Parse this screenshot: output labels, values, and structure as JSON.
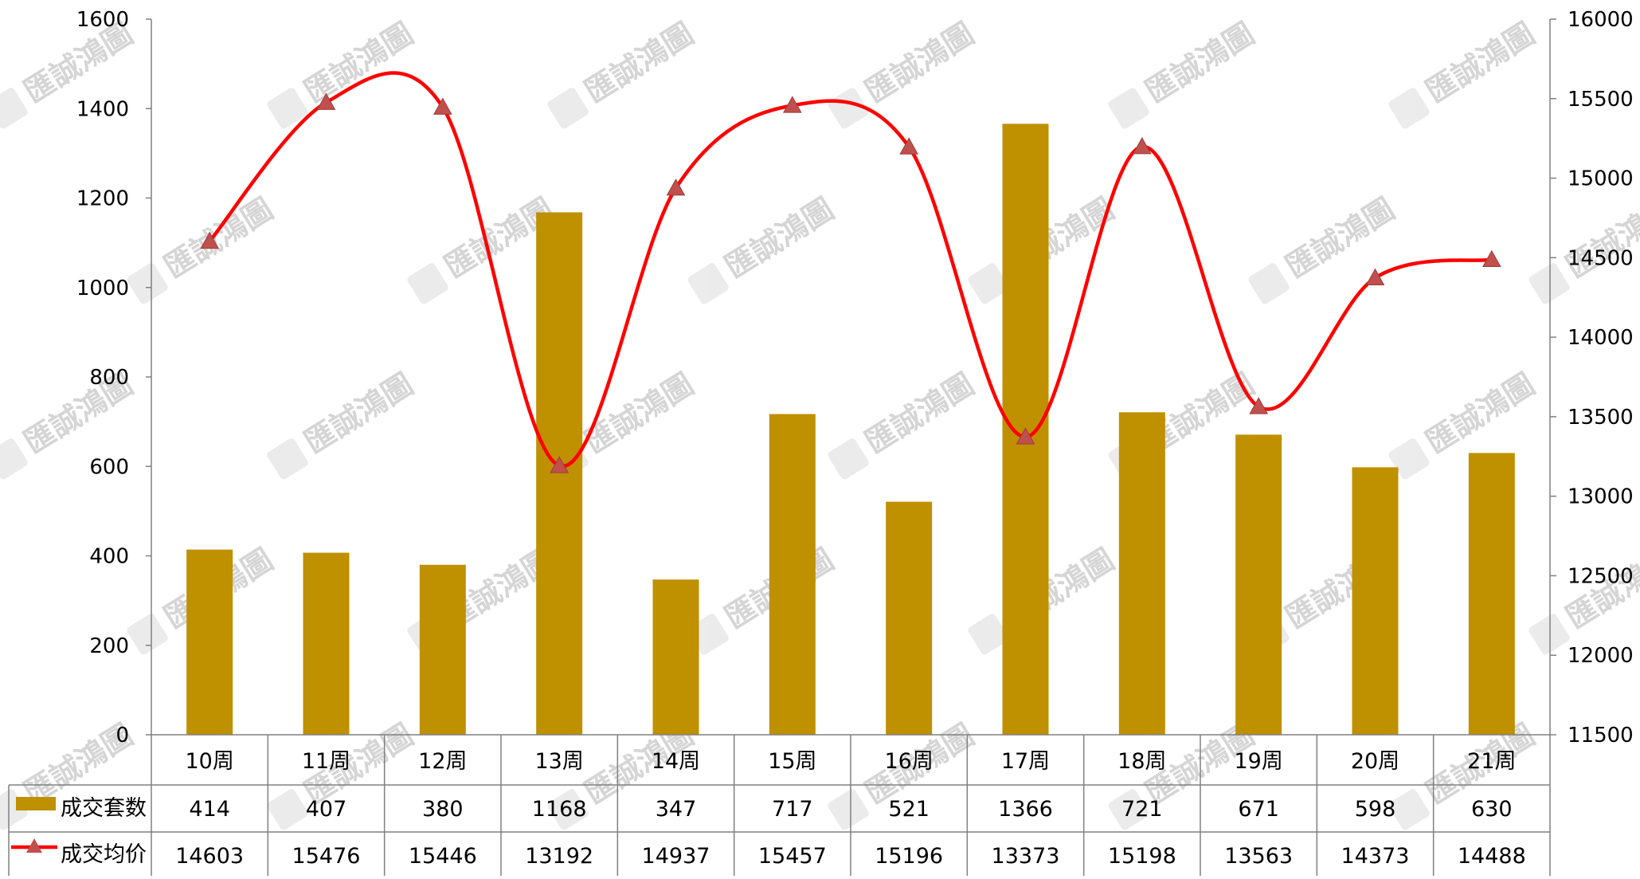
{
  "chart_data": {
    "type": "bar",
    "categories": [
      "10周",
      "11周",
      "12周",
      "13周",
      "14周",
      "15周",
      "16周",
      "17周",
      "18周",
      "19周",
      "20周",
      "21周"
    ],
    "series": [
      {
        "name": "成交套数",
        "type": "bar",
        "axis": "left",
        "color": "#BF9000",
        "values": [
          414,
          407,
          380,
          1168,
          347,
          717,
          521,
          1366,
          721,
          671,
          598,
          630
        ]
      },
      {
        "name": "成交均价",
        "type": "line",
        "axis": "right",
        "color": "#FF0000",
        "marker": "triangle",
        "marker_color": "#C0504D",
        "values": [
          14603,
          15476,
          15446,
          13192,
          14937,
          15457,
          15196,
          13373,
          15198,
          13563,
          14373,
          14488
        ]
      }
    ],
    "y_left": {
      "min": 0,
      "max": 1600,
      "step": 200,
      "ticks": [
        "0",
        "200",
        "400",
        "600",
        "800",
        "1000",
        "1200",
        "1400",
        "1600"
      ]
    },
    "y_right": {
      "min": 11500,
      "max": 16000,
      "step": 500,
      "ticks": [
        "11500",
        "12000",
        "12500",
        "13000",
        "13500",
        "14000",
        "14500",
        "15000",
        "15500",
        "16000"
      ]
    },
    "grid": false,
    "data_table": true,
    "watermark": "匯誠鴻圖"
  }
}
